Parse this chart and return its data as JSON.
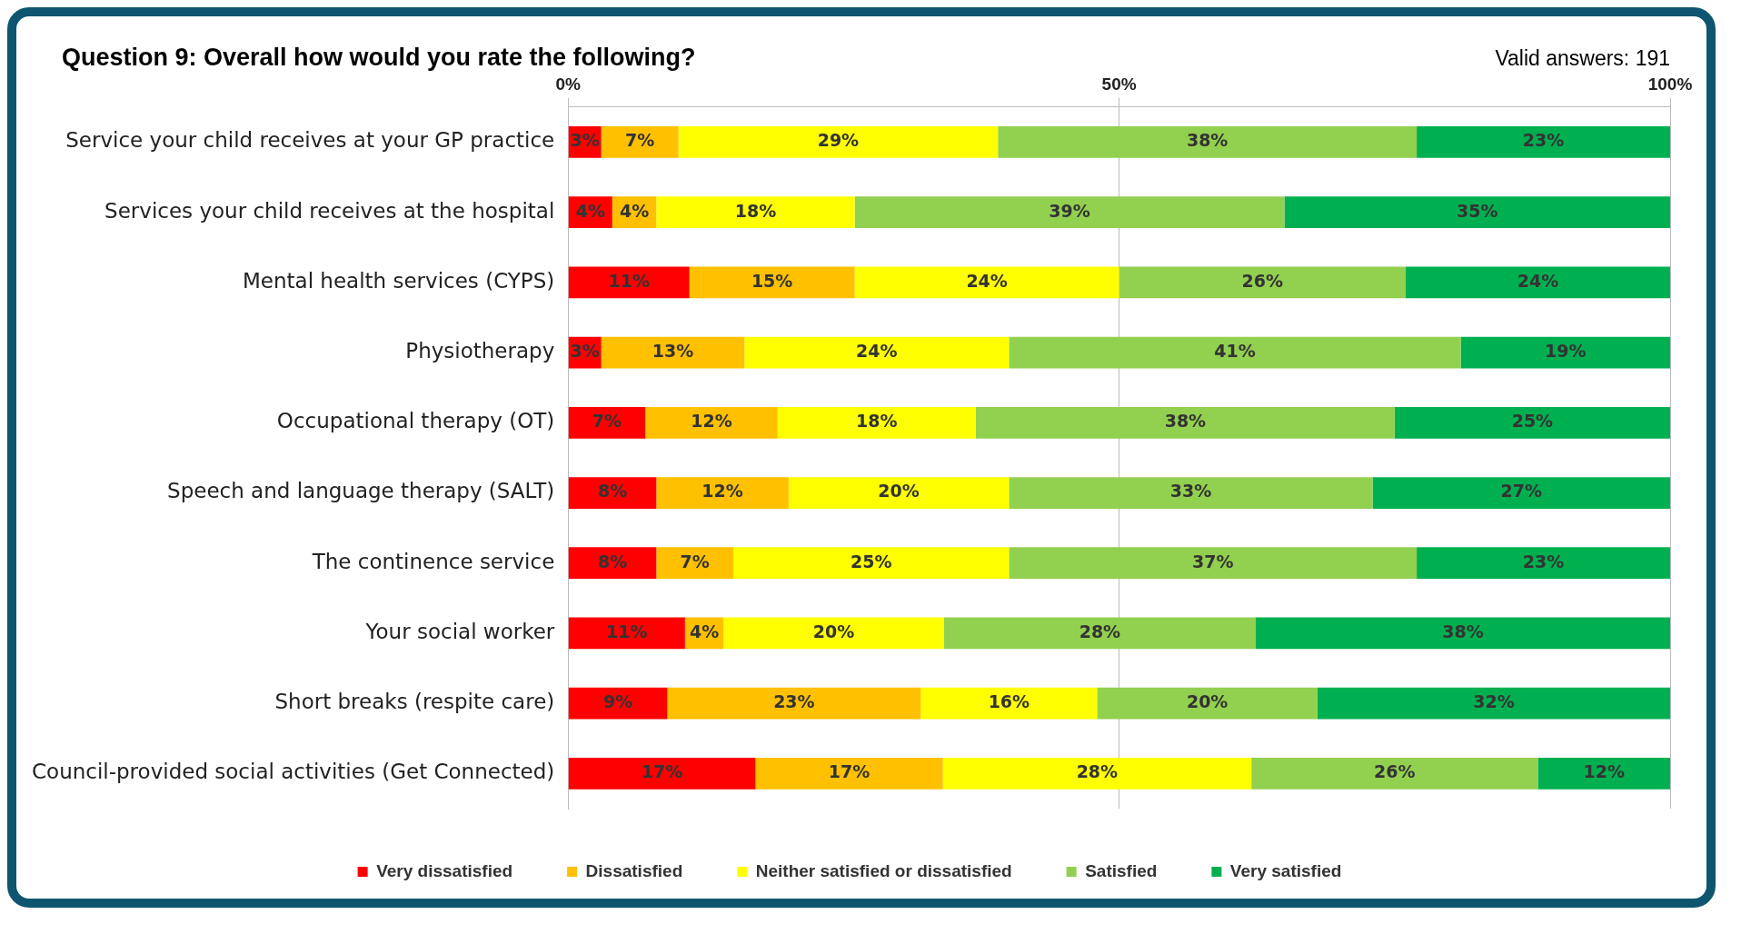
{
  "chart_data": {
    "type": "bar",
    "orientation": "horizontal",
    "stacked": true,
    "title": "Question 9: Overall how would you rate the following?",
    "annotations": [
      "Valid answers: 191"
    ],
    "categories": [
      "Service your child receives at your GP practice",
      "Services your child receives at the hospital",
      "Mental health services (CYPS)",
      "Physiotherapy",
      "Occupational therapy (OT)",
      "Speech and language therapy (SALT)",
      "The continence service",
      "Your social worker",
      "Short breaks (respite care)",
      "Council-provided social activities (Get Connected)"
    ],
    "series": [
      {
        "name": "Very dissatisfied",
        "color": "#ff0000",
        "values": [
          3,
          4,
          11,
          3,
          7,
          8,
          8,
          10.6,
          9,
          17
        ],
        "value_labels": [
          "3%",
          "4%",
          "11%",
          "3%",
          "7%",
          "8%",
          "8%",
          "11%",
          "9%",
          "17%"
        ]
      },
      {
        "name": "Dissatisfied",
        "color": "#ffc000",
        "values": [
          7,
          4,
          15,
          13,
          12,
          12,
          7,
          3.5,
          23,
          17
        ],
        "value_labels": [
          "7%",
          "4%",
          "15%",
          "13%",
          "12%",
          "12%",
          "7%",
          "4%",
          "23%",
          "17%"
        ]
      },
      {
        "name": "Neither satisfied or dissatisfied",
        "color": "#ffff00",
        "values": [
          29,
          18,
          24,
          24,
          18,
          20,
          25,
          20,
          16,
          28
        ],
        "value_labels": [
          "29%",
          "18%",
          "24%",
          "24%",
          "18%",
          "20%",
          "25%",
          "20%",
          "16%",
          "28%"
        ]
      },
      {
        "name": "Satisfied",
        "color": "#92d050",
        "values": [
          38,
          39,
          26,
          41,
          38,
          33,
          37,
          28.3,
          20,
          26
        ],
        "value_labels": [
          "38%",
          "39%",
          "26%",
          "41%",
          "38%",
          "33%",
          "37%",
          "28%",
          "20%",
          "26%"
        ]
      },
      {
        "name": "Very satisfied",
        "color": "#00b050",
        "values": [
          23,
          35,
          24,
          19,
          25,
          27,
          23,
          37.6,
          32,
          12
        ],
        "value_labels": [
          "23%",
          "35%",
          "24%",
          "19%",
          "25%",
          "27%",
          "23%",
          "38%",
          "32%",
          "12%"
        ]
      }
    ],
    "xlim": [
      0,
      100
    ],
    "xticks": [
      {
        "value": 0,
        "label": "0%"
      },
      {
        "value": 50,
        "label": "50%"
      },
      {
        "value": 100,
        "label": "100%"
      }
    ],
    "grid": "x",
    "legend": "bottom"
  }
}
